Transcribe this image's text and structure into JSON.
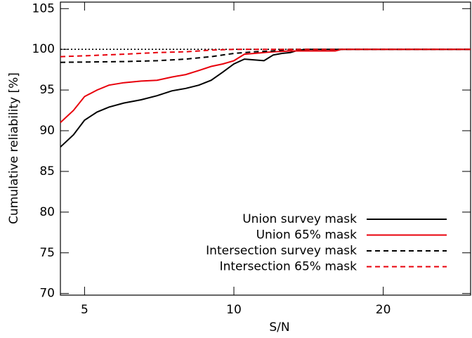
{
  "chart_data": {
    "type": "line",
    "x_label": "S/N",
    "y_label": "Cumulative reliability [%]",
    "xscale": "log",
    "xlim": [
      4.47,
      30
    ],
    "xticks": [
      5,
      10,
      20
    ],
    "ylim": [
      69.8,
      105.8
    ],
    "yticks": [
      70,
      75,
      80,
      85,
      90,
      95,
      100,
      105
    ],
    "reference_line": 100,
    "legend": "lower right",
    "series": [
      {
        "name": "Union survey mask",
        "color": "#000000",
        "dash": "solid",
        "x": [
          4.47,
          4.75,
          5,
          5.3,
          5.6,
          6,
          6.5,
          7,
          7.5,
          8,
          8.5,
          9,
          9.5,
          10,
          10.5,
          11,
          11.5,
          12,
          12.5,
          13,
          13.5,
          14,
          30
        ],
        "values": [
          88,
          89.5,
          91.3,
          92.3,
          92.9,
          93.4,
          93.8,
          94.3,
          94.9,
          95.2,
          95.6,
          96.2,
          97.2,
          98.2,
          98.8,
          98.7,
          98.6,
          99.3,
          99.5,
          99.6,
          99.9,
          100,
          100
        ]
      },
      {
        "name": "Union 65% mask",
        "color": "#e8000b",
        "dash": "solid",
        "x": [
          4.47,
          4.75,
          5,
          5.3,
          5.6,
          6,
          6.5,
          7,
          7.5,
          8,
          8.5,
          9,
          9.5,
          10,
          10.5,
          11,
          12,
          13,
          16,
          16.5,
          30
        ],
        "values": [
          91,
          92.5,
          94.2,
          95,
          95.6,
          95.9,
          96.1,
          96.2,
          96.6,
          96.9,
          97.4,
          97.9,
          98.2,
          98.6,
          99.4,
          99.5,
          99.7,
          99.8,
          99.8,
          100,
          100
        ]
      },
      {
        "name": "Intersection survey mask",
        "color": "#000000",
        "dash": "dashed",
        "x": [
          4.47,
          6,
          7,
          8,
          9,
          10,
          11,
          12,
          13,
          30
        ],
        "values": [
          98.4,
          98.5,
          98.6,
          98.8,
          99.1,
          99.5,
          99.7,
          99.8,
          100,
          100
        ]
      },
      {
        "name": "Intersection 65% mask",
        "color": "#e8000b",
        "dash": "dashed",
        "x": [
          4.47,
          5,
          6,
          7,
          8,
          9,
          10,
          30
        ],
        "values": [
          99.1,
          99.2,
          99.4,
          99.6,
          99.7,
          99.9,
          100,
          100
        ]
      }
    ]
  }
}
